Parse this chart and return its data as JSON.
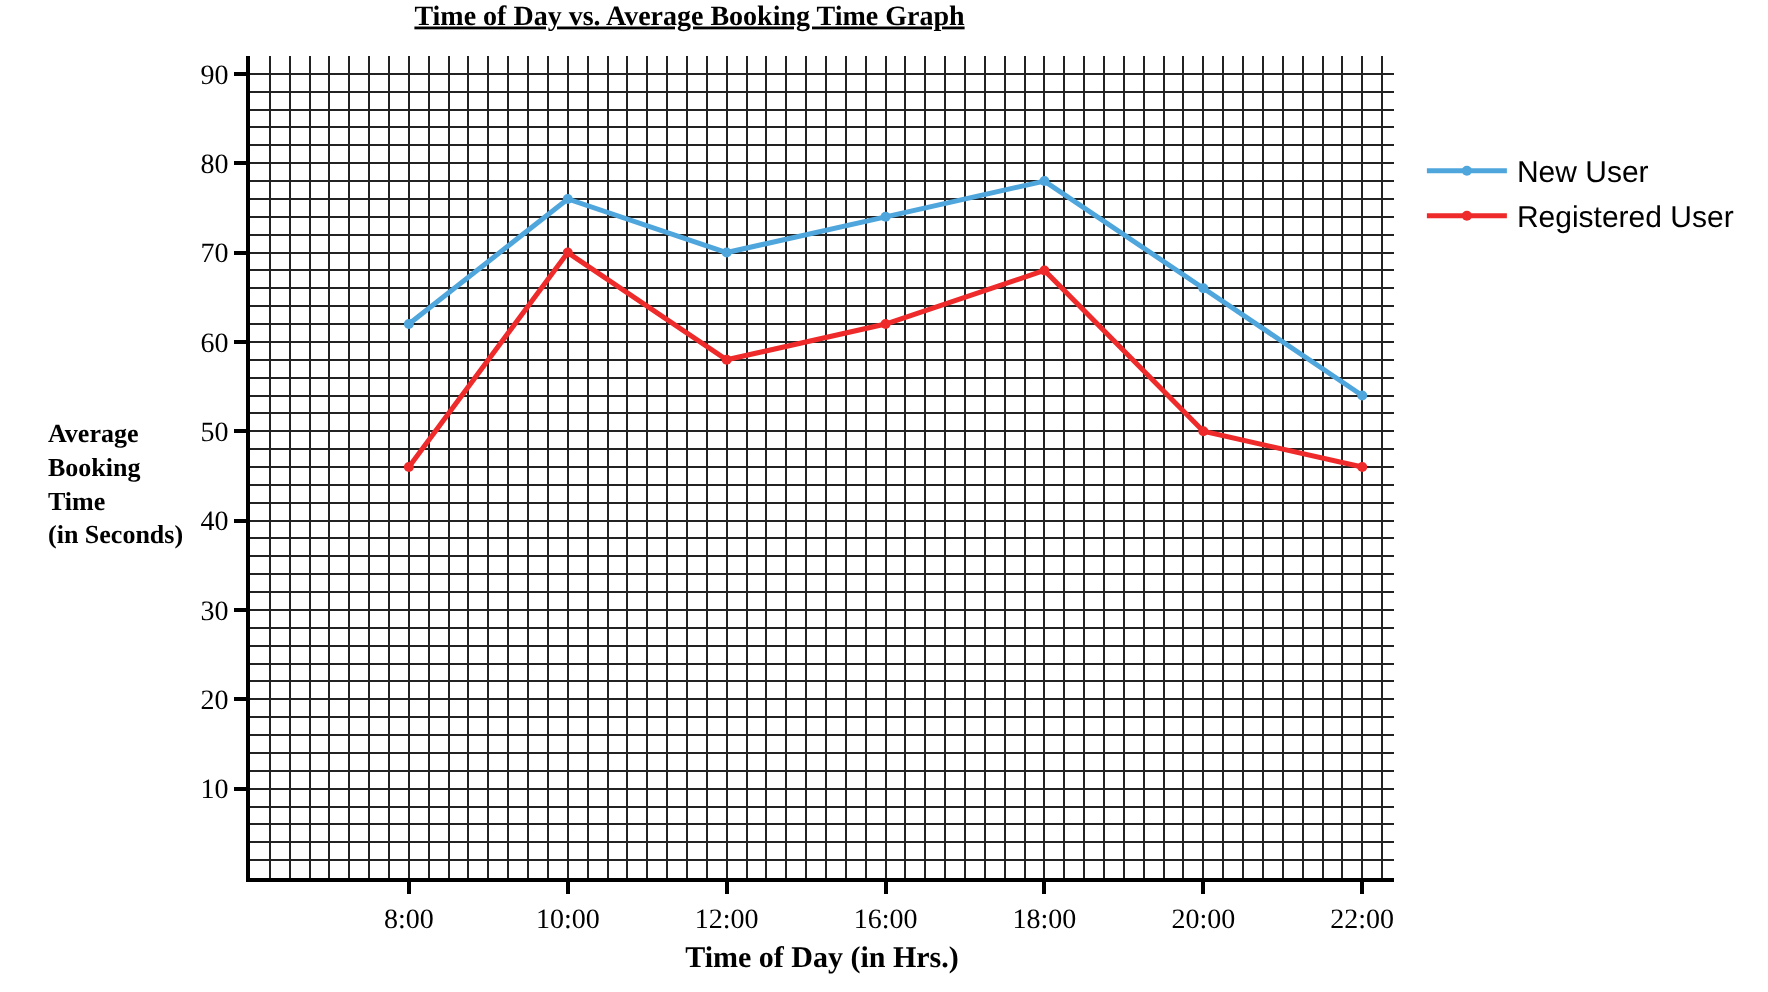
{
  "chart_data": {
    "type": "line",
    "title": "Time of Day vs. Average Booking Time Graph",
    "xlabel": "Time of Day (in Hrs.)",
    "ylabel": "Average Booking Time (in Seconds)",
    "categories": [
      "8:00",
      "10:00",
      "12:00",
      "16:00",
      "18:00",
      "20:00",
      "22:00"
    ],
    "series": [
      {
        "name": "New User",
        "color": "#4ea6dc",
        "values": [
          62,
          76,
          70,
          74,
          78,
          66,
          54
        ]
      },
      {
        "name": "Registered User",
        "color": "#ee2a2a",
        "values": [
          46,
          70,
          58,
          62,
          68,
          50,
          46
        ]
      }
    ],
    "ylim": [
      0,
      92
    ],
    "yticks": [
      10,
      20,
      30,
      40,
      50,
      60,
      70,
      80,
      90
    ],
    "grid": true,
    "legend": "right",
    "marker": "circle",
    "line_style": "solid"
  }
}
